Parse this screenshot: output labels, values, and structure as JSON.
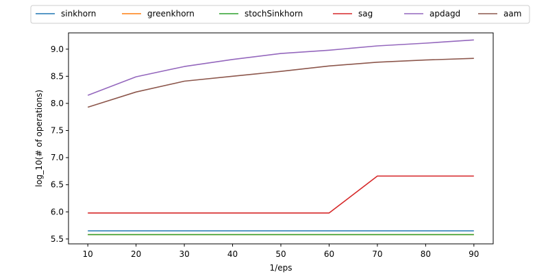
{
  "chart_data": {
    "type": "line",
    "title": "",
    "xlabel": "1/eps",
    "ylabel": "log_10(# of operations)",
    "x": [
      10,
      20,
      30,
      40,
      50,
      60,
      70,
      80,
      90
    ],
    "xticks": [
      "10",
      "20",
      "30",
      "40",
      "50",
      "60",
      "70",
      "80",
      "90"
    ],
    "yticks": [
      "5.5",
      "6.0",
      "6.5",
      "7.0",
      "7.5",
      "8.0",
      "8.5",
      "9.0"
    ],
    "ylim": [
      5.41,
      9.3
    ],
    "xlim": [
      6,
      94
    ],
    "grid": false,
    "legend_position": "top-center",
    "series": [
      {
        "name": "sinkhorn",
        "color": "#1f77b4",
        "values": [
          5.65,
          5.65,
          5.65,
          5.65,
          5.65,
          5.65,
          5.65,
          5.65,
          5.65
        ]
      },
      {
        "name": "greenkhorn",
        "color": "#ff7f0e",
        "values": [
          5.58,
          5.58,
          5.58,
          5.58,
          5.58,
          5.58,
          5.58,
          5.58,
          5.58
        ]
      },
      {
        "name": "stochSinkhorn",
        "color": "#2ca02c",
        "values": [
          5.58,
          5.58,
          5.58,
          5.58,
          5.58,
          5.58,
          5.58,
          5.58,
          5.58
        ]
      },
      {
        "name": "sag",
        "color": "#d62728",
        "values": [
          5.98,
          5.98,
          5.98,
          5.98,
          5.98,
          5.98,
          6.66,
          6.66,
          6.66
        ]
      },
      {
        "name": "apdagd",
        "color": "#9467bd",
        "values": [
          8.15,
          8.49,
          8.68,
          8.81,
          8.92,
          8.98,
          9.06,
          9.11,
          9.17
        ]
      },
      {
        "name": "aam",
        "color": "#8c564b",
        "values": [
          7.93,
          8.21,
          8.41,
          8.5,
          8.59,
          8.69,
          8.76,
          8.8,
          8.83
        ]
      }
    ]
  }
}
